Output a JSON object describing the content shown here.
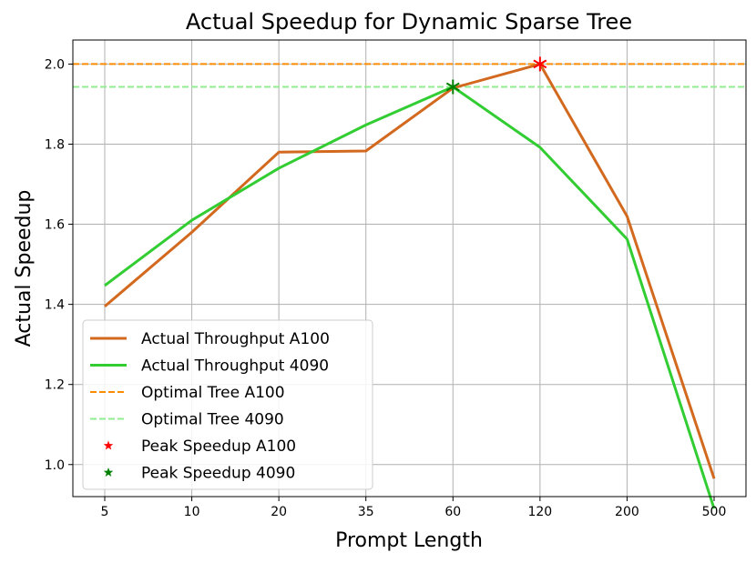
{
  "chart_data": {
    "type": "line",
    "title": "Actual Speedup for Dynamic Sparse Tree",
    "xlabel": "Prompt Length",
    "ylabel": "Actual Speedup",
    "categories": [
      "5",
      "10",
      "20",
      "35",
      "60",
      "120",
      "200",
      "500"
    ],
    "ylim": [
      0.92,
      2.06
    ],
    "yticks": [
      "1.0",
      "1.2",
      "1.4",
      "1.6",
      "1.8",
      "2.0"
    ],
    "grid": true,
    "legend_position": "lower-left",
    "series": [
      {
        "name": "Actual Throughput A100",
        "kind": "line",
        "color": "#d2691e",
        "values": [
          1.395,
          1.58,
          1.78,
          1.783,
          1.94,
          2.0,
          1.62,
          0.965
        ]
      },
      {
        "name": "Actual Throughput 4090",
        "kind": "line",
        "color": "#32cd32",
        "values": [
          1.447,
          1.61,
          1.74,
          1.848,
          1.943,
          1.792,
          1.563,
          0.89
        ]
      },
      {
        "name": "Optimal Tree A100",
        "kind": "hline",
        "color": "#ff8c00",
        "value": 2.0
      },
      {
        "name": "Optimal Tree 4090",
        "kind": "hline",
        "color": "#90ee90",
        "value": 1.943
      },
      {
        "name": "Peak Speedup A100",
        "kind": "marker",
        "color": "#ff0000",
        "x": "120",
        "value": 2.0
      },
      {
        "name": "Peak Speedup 4090",
        "kind": "marker",
        "color": "#008000",
        "x": "60",
        "value": 1.943
      }
    ]
  }
}
